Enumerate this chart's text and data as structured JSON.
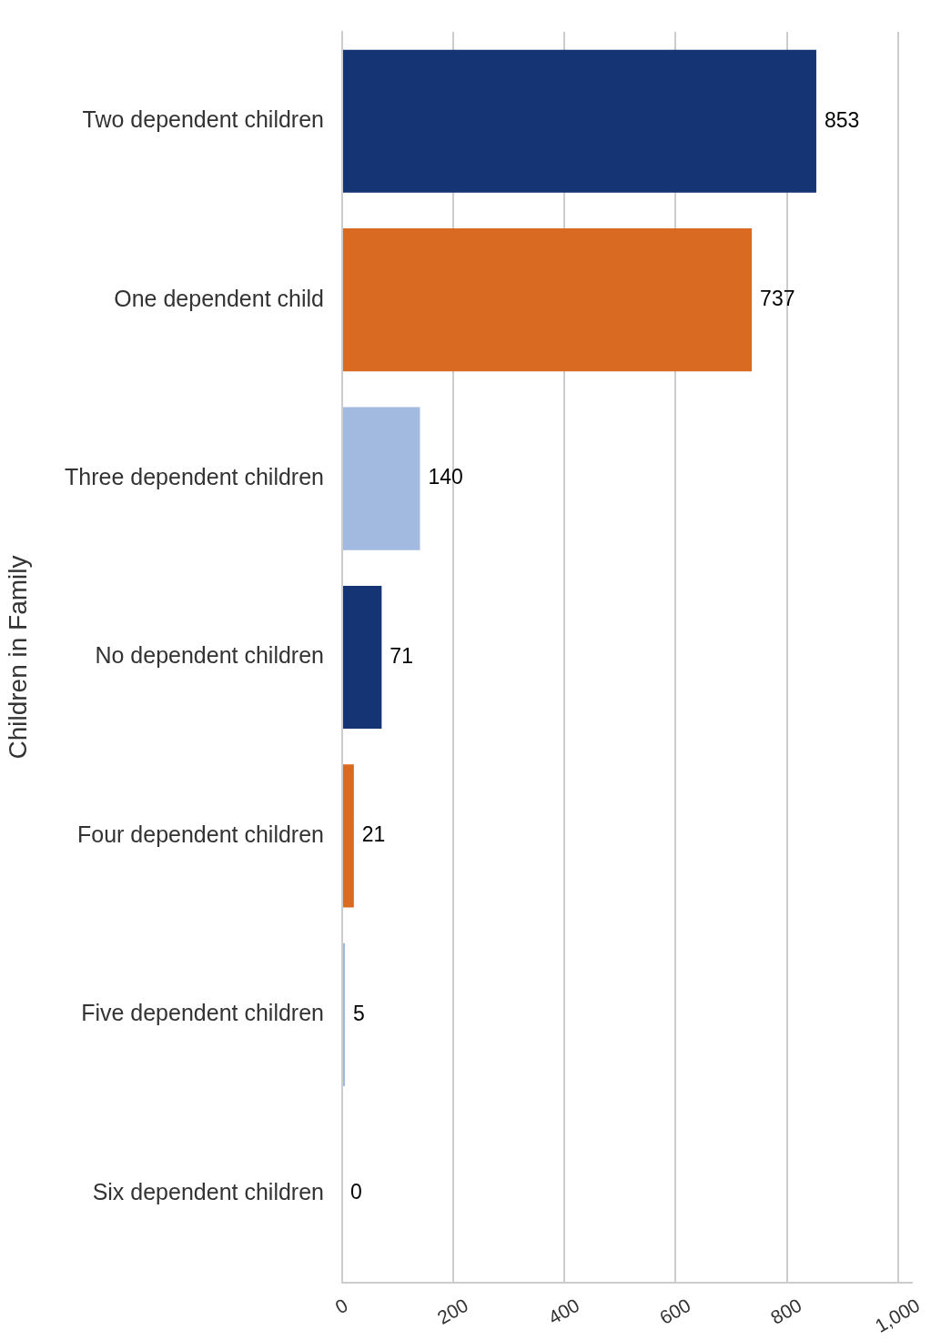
{
  "chart_data": {
    "type": "bar",
    "orientation": "horizontal",
    "ylabel": "Children in Family",
    "categories": [
      "Two dependent children",
      "One dependent child",
      "Three dependent children",
      "No dependent children",
      "Four dependent children",
      "Five dependent children",
      "Six dependent children"
    ],
    "values": [
      853,
      737,
      140,
      71,
      21,
      5,
      0
    ],
    "colors": [
      "#143474",
      "#d96a22",
      "#a2badf",
      "#143474",
      "#d96a22",
      "#a2badf",
      "#143474"
    ],
    "xlim": [
      0,
      1025
    ],
    "xticks": [
      0,
      200,
      400,
      600,
      800,
      {
        "value": 1000,
        "label": "1,000"
      }
    ],
    "grid": "x",
    "data_labels": true
  }
}
